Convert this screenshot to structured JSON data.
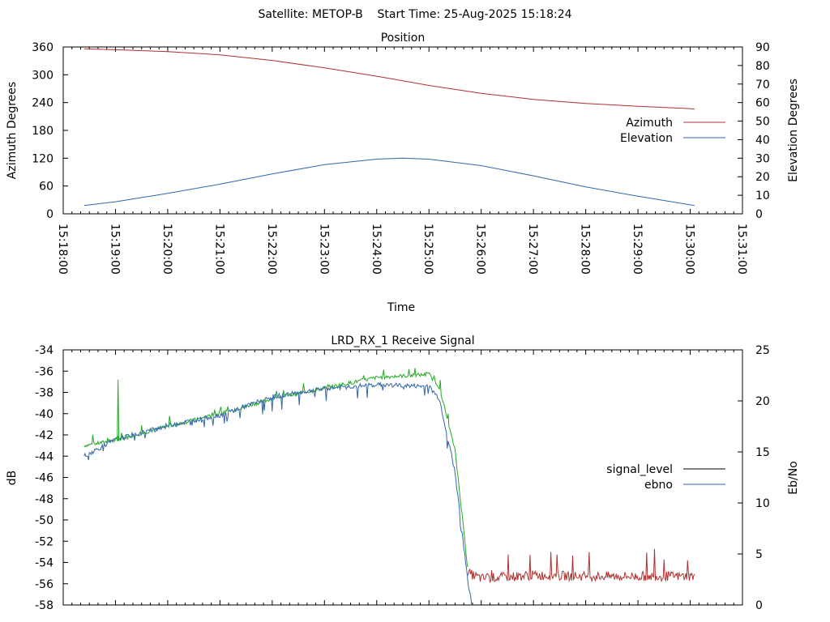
{
  "page_title": "Satellite: METOP-B    Start Time: 25-Aug-2025 15:18:24",
  "chart_data": [
    {
      "type": "line",
      "title": "Position",
      "xlabel": "Time",
      "ylabel": "Azimuth Degrees",
      "y2label": "Elevation Degrees",
      "xlim": [
        "15:18:00",
        "15:31:00"
      ],
      "ylim": [
        0,
        360
      ],
      "y2lim": [
        0,
        90
      ],
      "x_ticks": [
        "15:18:00",
        "15:19:00",
        "15:20:00",
        "15:21:00",
        "15:22:00",
        "15:23:00",
        "15:24:00",
        "15:25:00",
        "15:26:00",
        "15:27:00",
        "15:28:00",
        "15:29:00",
        "15:30:00",
        "15:31:00"
      ],
      "y_ticks": [
        "0",
        "60",
        "120",
        "180",
        "240",
        "300",
        "360"
      ],
      "y2_ticks": [
        "0",
        "10",
        "20",
        "30",
        "40",
        "50",
        "60",
        "70",
        "80",
        "90"
      ],
      "legend_position": "right",
      "series": [
        {
          "name": "Azimuth",
          "axis": "y",
          "color": "#b03030",
          "x": [
            "15:18:24",
            "15:19:00",
            "15:20:00",
            "15:21:00",
            "15:22:00",
            "15:23:00",
            "15:24:00",
            "15:25:00",
            "15:26:00",
            "15:27:00",
            "15:28:00",
            "15:29:00",
            "15:30:00",
            "15:30:05"
          ],
          "values": [
            356,
            354,
            350,
            343,
            331,
            315,
            297,
            277,
            260,
            247,
            238,
            232,
            227,
            226
          ]
        },
        {
          "name": "Elevation",
          "axis": "y2",
          "color": "#3366aa",
          "x": [
            "15:18:24",
            "15:19:00",
            "15:20:00",
            "15:21:00",
            "15:22:00",
            "15:23:00",
            "15:24:00",
            "15:24:30",
            "15:25:00",
            "15:26:00",
            "15:27:00",
            "15:28:00",
            "15:29:00",
            "15:30:05"
          ],
          "values": [
            4.5,
            6.5,
            11,
            16,
            21.5,
            26.5,
            29.5,
            30,
            29.5,
            26,
            20.5,
            14.5,
            9.5,
            4.5
          ]
        }
      ]
    },
    {
      "type": "line",
      "title": "LRD_RX_1 Receive Signal",
      "xlabel": "",
      "ylabel": "dB",
      "y2label": "Eb/No",
      "xlim": [
        "15:18:00",
        "15:31:00"
      ],
      "ylim": [
        -58,
        -34
      ],
      "y2lim": [
        0,
        25
      ],
      "y_ticks": [
        "-34",
        "-36",
        "-38",
        "-40",
        "-42",
        "-44",
        "-46",
        "-48",
        "-50",
        "-52",
        "-54",
        "-56",
        "-58"
      ],
      "y2_ticks": [
        "0",
        "5",
        "10",
        "15",
        "20",
        "25"
      ],
      "legend_position": "right",
      "legend": [
        {
          "name": "signal_level",
          "color": "#000000"
        },
        {
          "name": "ebno",
          "color": "#3366aa"
        }
      ],
      "series": [
        {
          "name": "signal_level",
          "axis": "y",
          "segments": [
            {
              "color": "#22aa22",
              "x": [
                "15:18:24",
                "15:19:00",
                "15:20:00",
                "15:21:00",
                "15:22:00",
                "15:23:00",
                "15:24:00",
                "15:25:00",
                "15:25:12",
                "15:25:30",
                "15:25:40",
                "15:25:45"
              ],
              "values": [
                -43.0,
                -42.5,
                -41.2,
                -40.0,
                -38.6,
                -37.6,
                -36.6,
                -36.3,
                -37.5,
                -43.5,
                -51.0,
                -55.0
              ]
            },
            {
              "color": "#b03030",
              "x": [
                "15:25:45",
                "15:26:00",
                "15:27:00",
                "15:28:00",
                "15:29:00",
                "15:30:00",
                "15:30:05"
              ],
              "values": [
                -55.0,
                -55.5,
                -55.2,
                -55.3,
                -55.3,
                -55.3,
                -55.3
              ]
            }
          ],
          "spike": {
            "x": "15:19:03",
            "value": -36.8
          }
        },
        {
          "name": "ebno",
          "axis": "y2",
          "color": "#3366aa",
          "x": [
            "15:18:24",
            "15:19:00",
            "15:20:00",
            "15:21:00",
            "15:22:00",
            "15:23:00",
            "15:24:00",
            "15:25:00",
            "15:25:12",
            "15:25:30",
            "15:25:45",
            "15:25:50"
          ],
          "values": [
            14.6,
            16.2,
            17.6,
            18.6,
            20.4,
            21.2,
            21.6,
            21.4,
            20.2,
            13.0,
            2.0,
            0
          ]
        }
      ]
    }
  ]
}
